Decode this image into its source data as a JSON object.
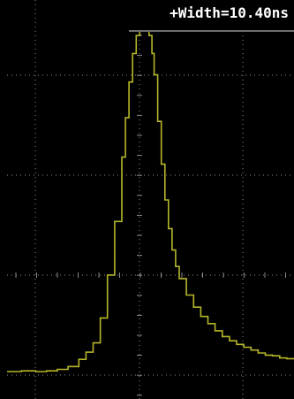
{
  "measurement": {
    "readout": "+Width=10.40ns"
  },
  "colors": {
    "background": "#000000",
    "grid": "#8c8c8c",
    "trace": "#b5b62a",
    "measurement_text": "#ffffff"
  },
  "chart_data": {
    "type": "line",
    "title": "",
    "xlabel": "",
    "ylabel": "",
    "grid": true,
    "xlim": [
      0,
      4
    ],
    "ylim": [
      0,
      5
    ],
    "series": [
      {
        "x": [
          0.0,
          0.2,
          0.4,
          0.55,
          0.7,
          0.85,
          1.0,
          1.1,
          1.2,
          1.3,
          1.4,
          1.5,
          1.6,
          1.65,
          1.7,
          1.75,
          1.8,
          1.85,
          1.9,
          1.95,
          1.98,
          2.02,
          2.05,
          2.1,
          2.15,
          2.2,
          2.25,
          2.3,
          2.35,
          2.4,
          2.5,
          2.6,
          2.7,
          2.8,
          2.9,
          3.0,
          3.1,
          3.2,
          3.3,
          3.4,
          3.5,
          3.6,
          3.7,
          3.8,
          3.9,
          4.0
        ],
        "y": [
          0.05,
          0.06,
          0.05,
          0.06,
          0.08,
          0.12,
          0.22,
          0.32,
          0.45,
          0.8,
          1.4,
          2.15,
          3.05,
          3.6,
          4.1,
          4.5,
          4.75,
          4.82,
          4.85,
          4.82,
          4.75,
          4.5,
          4.2,
          3.55,
          2.95,
          2.45,
          2.05,
          1.75,
          1.52,
          1.35,
          1.12,
          0.95,
          0.82,
          0.72,
          0.62,
          0.54,
          0.48,
          0.43,
          0.39,
          0.35,
          0.31,
          0.28,
          0.27,
          0.24,
          0.23,
          0.22
        ]
      }
    ]
  }
}
